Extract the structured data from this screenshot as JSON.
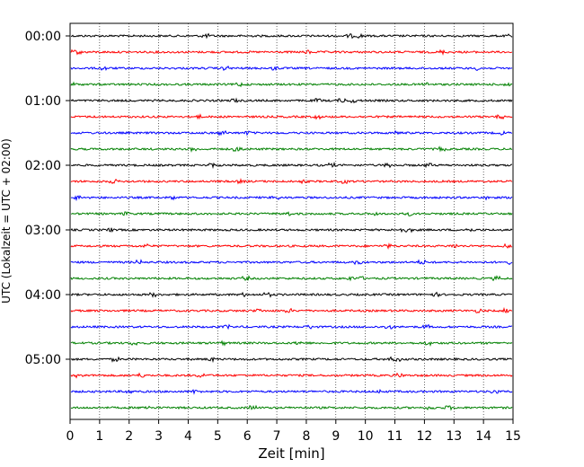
{
  "chart_data": {
    "type": "line",
    "title": "",
    "xlabel": "Zeit  [min]",
    "ylabel": "UTC (Lokalzeit = UTC + 02:00)",
    "xlim": [
      0,
      15
    ],
    "x_ticks": [
      "0",
      "1",
      "2",
      "3",
      "4",
      "5",
      "6",
      "7",
      "8",
      "9",
      "10",
      "11",
      "12",
      "13",
      "14",
      "15"
    ],
    "grid": "vertical dotted lines at each minute",
    "y_ticks": [
      {
        "label": "00:00",
        "trace": 0
      },
      {
        "label": "01:00",
        "trace": 4
      },
      {
        "label": "02:00",
        "trace": 8
      },
      {
        "label": "03:00",
        "trace": 12
      },
      {
        "label": "04:00",
        "trace": 16
      },
      {
        "label": "05:00",
        "trace": 20
      }
    ],
    "trace_count": 24,
    "trace_interval_minutes": 15,
    "color_cycle": [
      "#000000",
      "#ff0000",
      "#0000ff",
      "#008000"
    ],
    "series_description": "seismogram helicorder: 24 traces of 15 min each, colors cycle black, red, blue, green"
  }
}
